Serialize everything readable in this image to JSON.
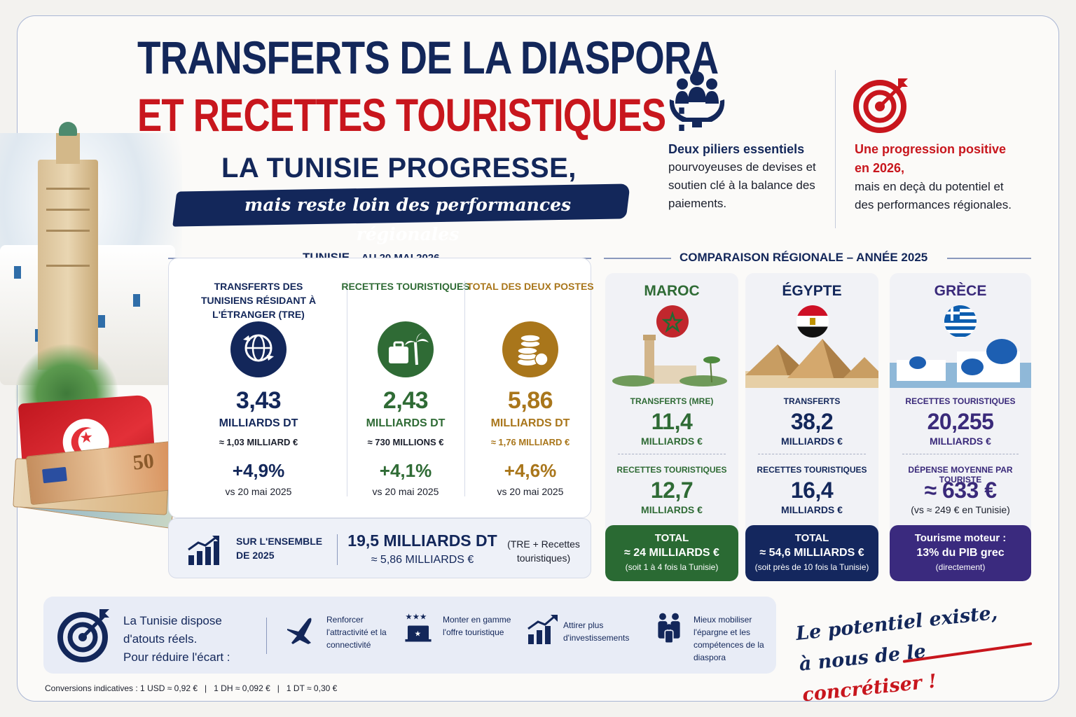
{
  "header": {
    "title_line1": "TRANSFERTS DE LA DIASPORA",
    "title_line2": "ET RECETTES TOURISTIQUES",
    "title_colon": ":",
    "subtitle": "LA TUNISIE PROGRESSE,",
    "banner": "mais reste loin des performances régionales"
  },
  "pillars": [
    {
      "highlight": "Deux piliers essentiels",
      "text": "pourvoyeuses de devises et soutien clé à la balance des paiements.",
      "icon": "hands-people-icon"
    },
    {
      "highlight": "Une progression positive en 2026,",
      "text": "mais en deçà du potentiel et des performances régionales.",
      "icon": "target-icon"
    }
  ],
  "tunisia": {
    "section_title": "TUNISIE",
    "section_date": "– AU 20 MAI 2026",
    "columns": [
      {
        "label": "TRANSFERTS DES TUNISIENS RÉSIDANT À L'ÉTRANGER (TRE)",
        "value": "3,43",
        "unit": "MILLIARDS DT",
        "eur": "≈ 1,03 MILLIARD €",
        "change": "+4,9%",
        "vs": "vs 20 mai 2025",
        "color": "#13275a",
        "icon": "globe-transfer-icon"
      },
      {
        "label": "RECETTES TOURISTIQUES",
        "value": "2,43",
        "unit": "MILLIARDS DT",
        "eur": "≈ 730 MILLIONS €",
        "change": "+4,1%",
        "vs": "vs 20 mai 2025",
        "color": "#2f6b35",
        "icon": "suitcase-palm-icon"
      },
      {
        "label": "TOTAL DES DEUX POSTES",
        "value": "5,86",
        "unit": "MILLIARDS DT",
        "eur": "≈ 1,76 MILLIARD €",
        "change": "+4,6%",
        "vs": "vs 20 mai 2025",
        "color": "#a9761b",
        "icon": "coins-icon"
      }
    ],
    "summary": {
      "label": "SUR L'ENSEMBLE DE 2025",
      "value": "19,5 MILLIARDS DT",
      "eur": "≈ 5,86 MILLIARDS €",
      "note": "(TRE + Recettes touristiques)"
    }
  },
  "regional": {
    "section_title": "COMPARAISON RÉGIONALE – ANNÉE 2025",
    "cards": [
      {
        "country": "MAROC",
        "l1": "TRANSFERTS (MRE)",
        "v1": "11,4",
        "u1": "MILLIARDS €",
        "l2": "RECETTES TOURISTIQUES",
        "v2": "12,7",
        "u2": "MILLIARDS €",
        "f1": "TOTAL",
        "f2": "≈ 24 MILLIARDS €",
        "f3": "(soit 1 à 4 fois la Tunisie)",
        "color": "#2f6b35",
        "foot_color": "#2a6a33"
      },
      {
        "country": "ÉGYPTE",
        "l1": "TRANSFERTS",
        "v1": "38,2",
        "u1": "MILLIARDS €",
        "l2": "RECETTES TOURISTIQUES",
        "v2": "16,4",
        "u2": "MILLIARDS €",
        "f1": "TOTAL",
        "f2": "≈ 54,6 MILLIARDS €",
        "f3": "(soit près de 10 fois la Tunisie)",
        "color": "#13275a",
        "foot_color": "#14275e"
      },
      {
        "country": "GRÈCE",
        "l1": "RECETTES TOURISTIQUES",
        "v1": "20,255",
        "u1": "MILLIARDS €",
        "l2": "DÉPENSE MOYENNE PAR TOURISTE",
        "v2": "≈ 633 €",
        "u2": "(vs ≈ 249 € en Tunisie)",
        "f1": "Tourisme moteur :",
        "f2": "13% du PIB grec",
        "f3": "(directement)",
        "color": "#3a2a7a",
        "foot_color": "#3a2a7e"
      }
    ]
  },
  "bottom": {
    "intro": [
      "La Tunisie dispose",
      "d'atouts réels.",
      "Pour réduire l'écart :"
    ],
    "actions": [
      {
        "text": "Renforcer l'attractivité et la connectivité",
        "icon": "airplane-icon"
      },
      {
        "text": "Monter en gamme l'offre touristique",
        "icon": "hotel-stars-icon"
      },
      {
        "text": "Attirer plus d'investissements",
        "icon": "growth-chart-icon"
      },
      {
        "text": "Mieux mobiliser l'épargne et les compétences de la diaspora",
        "icon": "family-icon"
      }
    ],
    "slogan_a": "Le potentiel existe,",
    "slogan_b": "à nous de le",
    "slogan_c": "concrétiser !"
  },
  "conversions": "Conversions indicatives : 1 USD ≈ 0,92 €   |   1 DH ≈ 0,092 €   |   1 DT ≈ 0,30 €"
}
